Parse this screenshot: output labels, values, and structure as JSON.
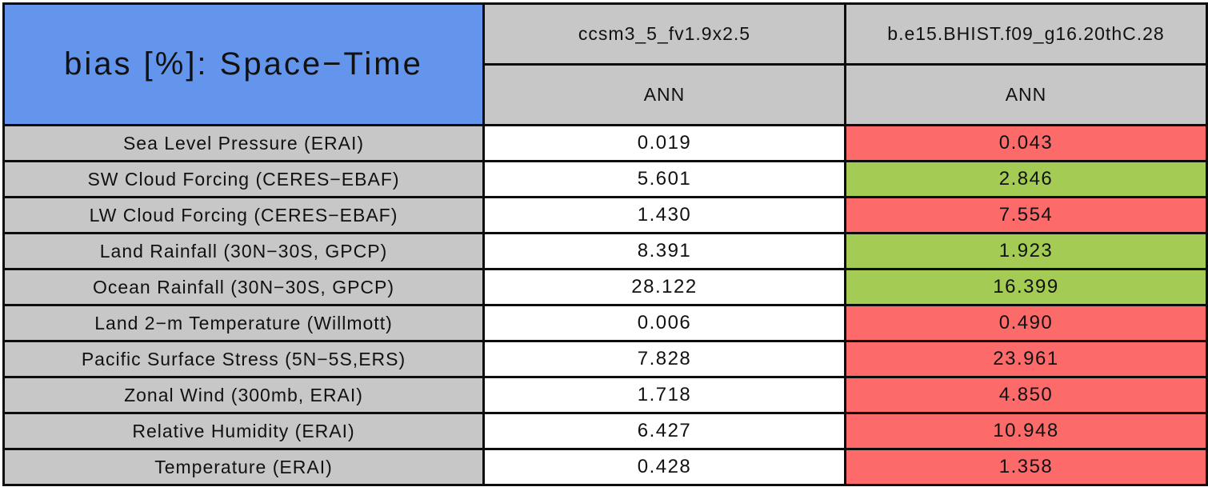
{
  "colors": {
    "title_bg": "#6495ED",
    "header_bg": "#C7C7C7",
    "border": "#0D0D0D",
    "default": "#FFFFFF",
    "red": "#FC6A6A",
    "green": "#A4CC55"
  },
  "chart_data": {
    "type": "table",
    "title": "bias [%]: Space−Time",
    "columns": [
      {
        "name": "ccsm3_5_fv1.9x2.5",
        "season": "ANN"
      },
      {
        "name": "b.e15.BHIST.f09_g16.20thC.28",
        "season": "ANN"
      }
    ],
    "rows": [
      {
        "label": "Sea Level Pressure (ERAI)",
        "values": [
          {
            "value": "0.019",
            "status": "default"
          },
          {
            "value": "0.043",
            "status": "red"
          }
        ]
      },
      {
        "label": "SW Cloud Forcing (CERES−EBAF)",
        "values": [
          {
            "value": "5.601",
            "status": "default"
          },
          {
            "value": "2.846",
            "status": "green"
          }
        ]
      },
      {
        "label": "LW Cloud Forcing (CERES−EBAF)",
        "values": [
          {
            "value": "1.430",
            "status": "default"
          },
          {
            "value": "7.554",
            "status": "red"
          }
        ]
      },
      {
        "label": "Land Rainfall (30N−30S, GPCP)",
        "values": [
          {
            "value": "8.391",
            "status": "default"
          },
          {
            "value": "1.923",
            "status": "green"
          }
        ]
      },
      {
        "label": "Ocean Rainfall (30N−30S, GPCP)",
        "values": [
          {
            "value": "28.122",
            "status": "default"
          },
          {
            "value": "16.399",
            "status": "green"
          }
        ]
      },
      {
        "label": "Land 2−m Temperature (Willmott)",
        "values": [
          {
            "value": "0.006",
            "status": "default"
          },
          {
            "value": "0.490",
            "status": "red"
          }
        ]
      },
      {
        "label": "Pacific Surface Stress (5N−5S,ERS)",
        "values": [
          {
            "value": "7.828",
            "status": "default"
          },
          {
            "value": "23.961",
            "status": "red"
          }
        ]
      },
      {
        "label": "Zonal Wind (300mb, ERAI)",
        "values": [
          {
            "value": "1.718",
            "status": "default"
          },
          {
            "value": "4.850",
            "status": "red"
          }
        ]
      },
      {
        "label": "Relative Humidity (ERAI)",
        "values": [
          {
            "value": "6.427",
            "status": "default"
          },
          {
            "value": "10.948",
            "status": "red"
          }
        ]
      },
      {
        "label": "Temperature (ERAI)",
        "values": [
          {
            "value": "0.428",
            "status": "default"
          },
          {
            "value": "1.358",
            "status": "red"
          }
        ]
      }
    ]
  }
}
